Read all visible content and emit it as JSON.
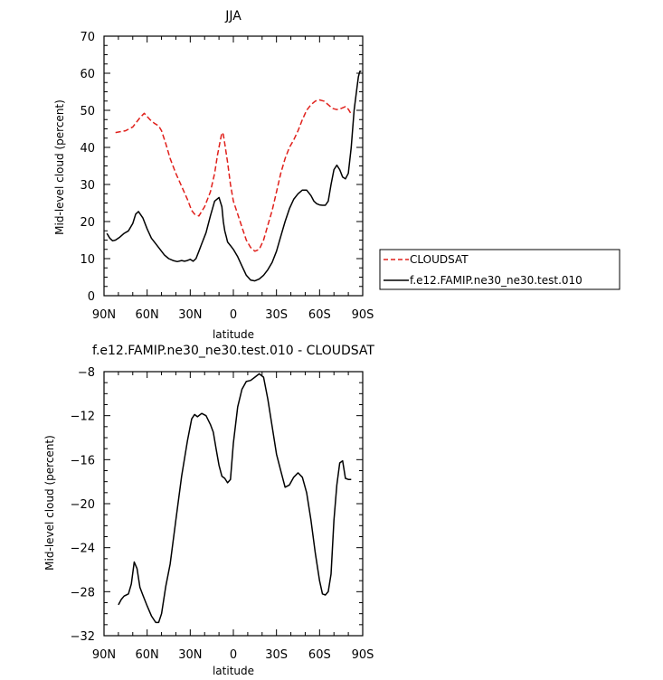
{
  "chart_data": [
    {
      "type": "line",
      "title": "JJA",
      "xlabel": "latitude",
      "ylabel": "Mid-level cloud (percent)",
      "ylim": [
        0,
        70
      ],
      "xlim": [
        -90,
        90
      ],
      "xticks": [
        {
          "value": -90,
          "label": "90N"
        },
        {
          "value": -60,
          "label": "60N"
        },
        {
          "value": -30,
          "label": "30N"
        },
        {
          "value": 0,
          "label": "0"
        },
        {
          "value": 30,
          "label": "30S"
        },
        {
          "value": 60,
          "label": "60S"
        },
        {
          "value": 90,
          "label": "90S"
        }
      ],
      "yticks": [
        0,
        10,
        20,
        30,
        40,
        50,
        60,
        70
      ],
      "legend_position": "right",
      "series": [
        {
          "name": "CLOUDSAT",
          "color": "#e0201b",
          "dash": "dashed",
          "x": [
            -82,
            -75,
            -70,
            -65,
            -62,
            -58,
            -55,
            -52,
            -50,
            -47,
            -44,
            -40,
            -36,
            -32,
            -29,
            -27,
            -24,
            -20,
            -16,
            -13,
            -11,
            -9,
            -8,
            -7,
            -6,
            -4,
            -2,
            0,
            3,
            6,
            9,
            12,
            15,
            18,
            21,
            24,
            27,
            30,
            33,
            36,
            39,
            42,
            45,
            48,
            51,
            54,
            57,
            60,
            63,
            66,
            69,
            72,
            75,
            78,
            80,
            82
          ],
          "y": [
            44,
            44.5,
            45.5,
            48,
            49.2,
            47.5,
            46.5,
            45.8,
            44.5,
            41,
            37,
            33,
            29.5,
            26,
            23,
            22,
            21.5,
            24,
            28,
            33,
            38,
            42,
            44,
            43.5,
            41,
            36,
            30,
            25.5,
            22,
            18.5,
            15,
            13,
            12,
            12.5,
            15,
            19,
            23,
            28,
            33,
            37,
            40,
            42,
            44.5,
            47.5,
            50,
            51.5,
            52.5,
            52.8,
            52.5,
            51.5,
            50.5,
            50.2,
            50.5,
            51,
            50.3,
            49
          ]
        },
        {
          "name": "f.e12.FAMIP.ne30_ne30.test.010",
          "color": "#000000",
          "dash": "solid",
          "x": [
            -88,
            -86,
            -84,
            -82,
            -79,
            -76,
            -73,
            -70,
            -68,
            -66,
            -63,
            -60,
            -57,
            -54,
            -51,
            -48,
            -45,
            -42,
            -39,
            -36,
            -34,
            -32,
            -30,
            -28,
            -26,
            -24,
            -22,
            -19,
            -16,
            -13,
            -10,
            -8,
            -7,
            -6,
            -5,
            -4,
            -2,
            0,
            3,
            6,
            9,
            12,
            15,
            18,
            21,
            24,
            27,
            30,
            33,
            36,
            39,
            42,
            45,
            48,
            51,
            54,
            56,
            58,
            60,
            62,
            64,
            66,
            68,
            70,
            72,
            74,
            76,
            78,
            80,
            82,
            84,
            86,
            87,
            88,
            89
          ],
          "y": [
            16.8,
            15.5,
            14.8,
            15,
            15.8,
            16.8,
            17.5,
            19.5,
            22,
            22.7,
            21,
            18,
            15.5,
            14,
            12.5,
            11,
            10,
            9.5,
            9.2,
            9.5,
            9.3,
            9.5,
            9.8,
            9.3,
            10,
            12,
            14,
            17,
            21.5,
            25.5,
            26.5,
            24,
            20,
            17.5,
            16,
            14.5,
            13.5,
            12.5,
            10.5,
            8,
            5.5,
            4.2,
            4,
            4.5,
            5.5,
            7,
            9,
            12,
            16,
            20,
            23.5,
            26,
            27.5,
            28.5,
            28.5,
            27,
            25.5,
            24.8,
            24.5,
            24.4,
            24.4,
            25.5,
            30,
            34,
            35.2,
            34,
            32,
            31.5,
            33,
            40,
            50,
            56,
            59,
            60.5,
            60.5
          ]
        }
      ]
    },
    {
      "type": "line",
      "title": "f.e12.FAMIP.ne30_ne30.test.010 - CLOUDSAT",
      "xlabel": "latitude",
      "ylabel": "Mid-level cloud (percent)",
      "ylim": [
        -32,
        -8
      ],
      "xlim": [
        -90,
        90
      ],
      "xticks": [
        {
          "value": -90,
          "label": "90N"
        },
        {
          "value": -60,
          "label": "60N"
        },
        {
          "value": -30,
          "label": "30N"
        },
        {
          "value": 0,
          "label": "0"
        },
        {
          "value": 30,
          "label": "30S"
        },
        {
          "value": 60,
          "label": "60S"
        },
        {
          "value": 90,
          "label": "90S"
        }
      ],
      "yticks": [
        -32,
        -28,
        -24,
        -20,
        -16,
        -12,
        -8
      ],
      "series": [
        {
          "color": "#000000",
          "dash": "solid",
          "x": [
            -80,
            -78,
            -76,
            -73,
            -71,
            -69,
            -67,
            -65,
            -63,
            -60,
            -57,
            -54,
            -52,
            -50,
            -47,
            -44,
            -40,
            -36,
            -32,
            -29,
            -27,
            -25,
            -22,
            -19,
            -16,
            -14,
            -12,
            -10,
            -8,
            -6,
            -4,
            -2,
            0,
            3,
            6,
            9,
            12,
            15,
            18,
            21,
            24,
            27,
            30,
            33,
            36,
            39,
            42,
            45,
            48,
            51,
            54,
            57,
            60,
            62,
            64,
            66,
            68,
            70,
            72,
            74,
            76,
            78,
            80,
            82
          ],
          "y": [
            -29.2,
            -28.7,
            -28.4,
            -28.2,
            -27.3,
            -25.3,
            -25.9,
            -27.6,
            -28.3,
            -29.3,
            -30.2,
            -30.8,
            -30.8,
            -30,
            -27.5,
            -25.5,
            -21.5,
            -17.5,
            -14.3,
            -12.3,
            -11.9,
            -12.1,
            -11.8,
            -12,
            -12.8,
            -13.5,
            -15,
            -16.5,
            -17.5,
            -17.7,
            -18.1,
            -17.8,
            -14.5,
            -11.2,
            -9.6,
            -8.9,
            -8.8,
            -8.5,
            -8.2,
            -8.5,
            -10.5,
            -13,
            -15.5,
            -17,
            -18.5,
            -18.3,
            -17.6,
            -17.2,
            -17.6,
            -19,
            -21.5,
            -24.5,
            -27,
            -28.2,
            -28.3,
            -28,
            -26.4,
            -21.5,
            -18.3,
            -16.3,
            -16.1,
            -17.7,
            -17.8,
            -17.8
          ]
        }
      ]
    }
  ]
}
